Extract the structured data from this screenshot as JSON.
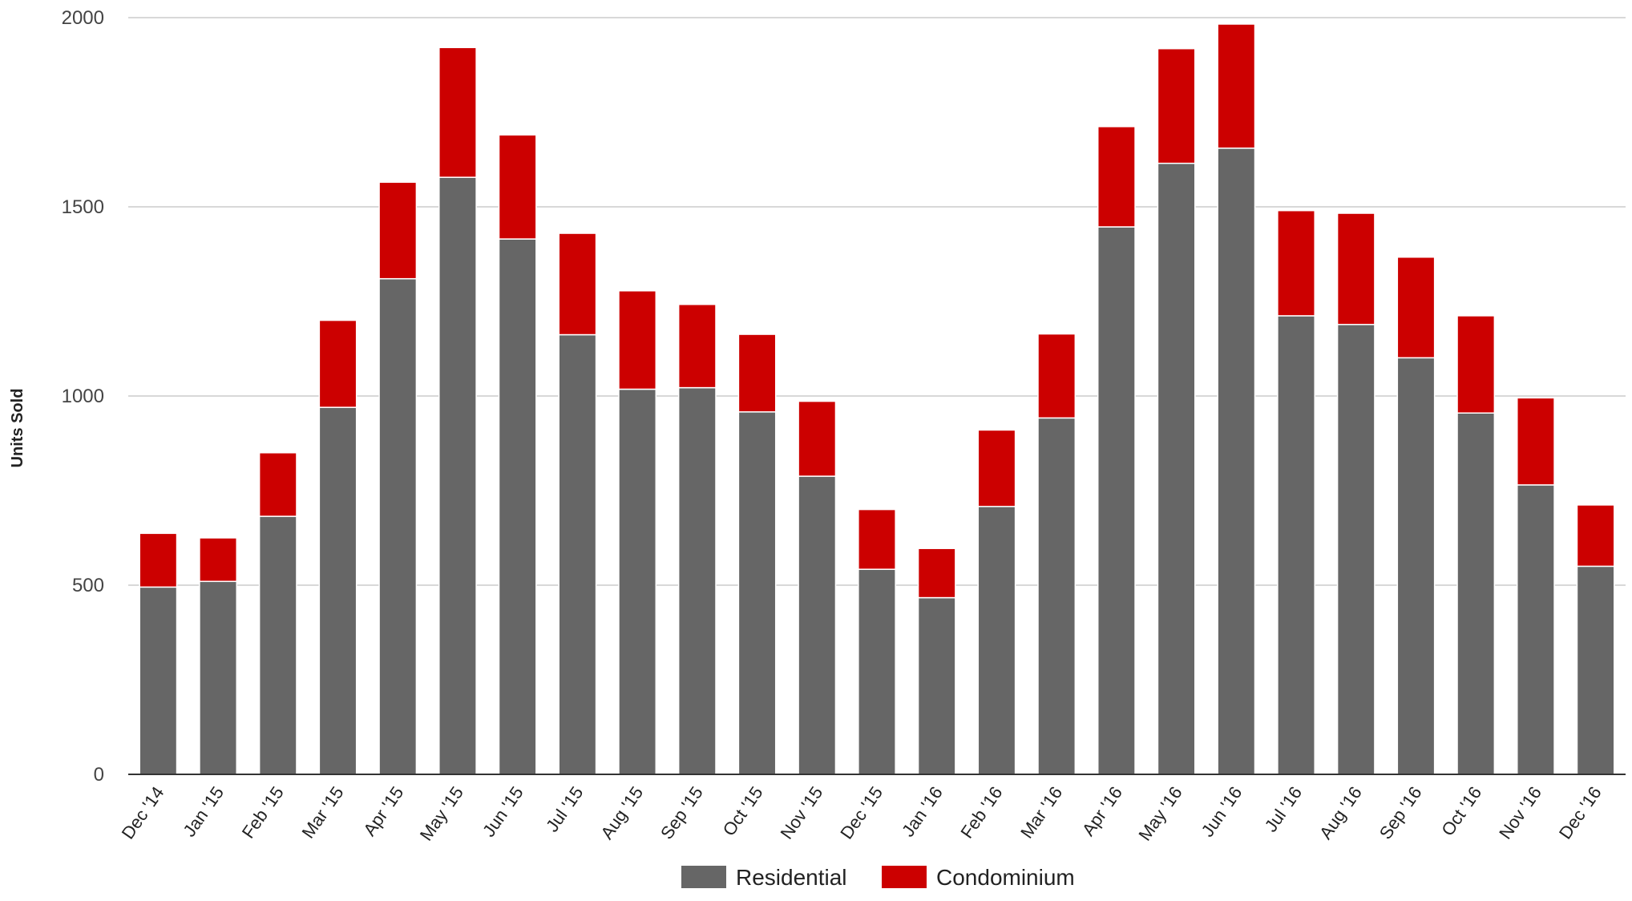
{
  "chart_data": {
    "type": "bar",
    "stacked": true,
    "title": "",
    "xlabel": "",
    "ylabel": "Units Sold",
    "ylim": [
      0,
      2000
    ],
    "yticks": [
      0,
      500,
      1000,
      1500,
      2000
    ],
    "grid": true,
    "legend_position": "bottom",
    "categories": [
      "Dec '14",
      "Jan '15",
      "Feb '15",
      "Mar '15",
      "Apr '15",
      "May '15",
      "Jun '15",
      "Jul '15",
      "Aug '15",
      "Sep '15",
      "Oct '15",
      "Nov '15",
      "Dec '15",
      "Jan '16",
      "Feb '16",
      "Mar '16",
      "Apr '16",
      "May '16",
      "Jun '16",
      "Jul '16",
      "Aug '16",
      "Sep '16",
      "Oct '16",
      "Nov '16",
      "Dec '16"
    ],
    "series": [
      {
        "name": "Residential",
        "color": "#666666",
        "values": [
          495,
          510,
          682,
          970,
          1310,
          1578,
          1415,
          1162,
          1018,
          1022,
          958,
          788,
          542,
          467,
          708,
          942,
          1447,
          1615,
          1655,
          1212,
          1189,
          1101,
          955,
          765,
          550
        ]
      },
      {
        "name": "Condominium",
        "color": "#cc0000",
        "values": [
          142,
          115,
          168,
          230,
          255,
          343,
          275,
          268,
          260,
          220,
          205,
          198,
          158,
          130,
          202,
          222,
          265,
          303,
          328,
          278,
          294,
          266,
          257,
          230,
          162
        ]
      }
    ]
  }
}
